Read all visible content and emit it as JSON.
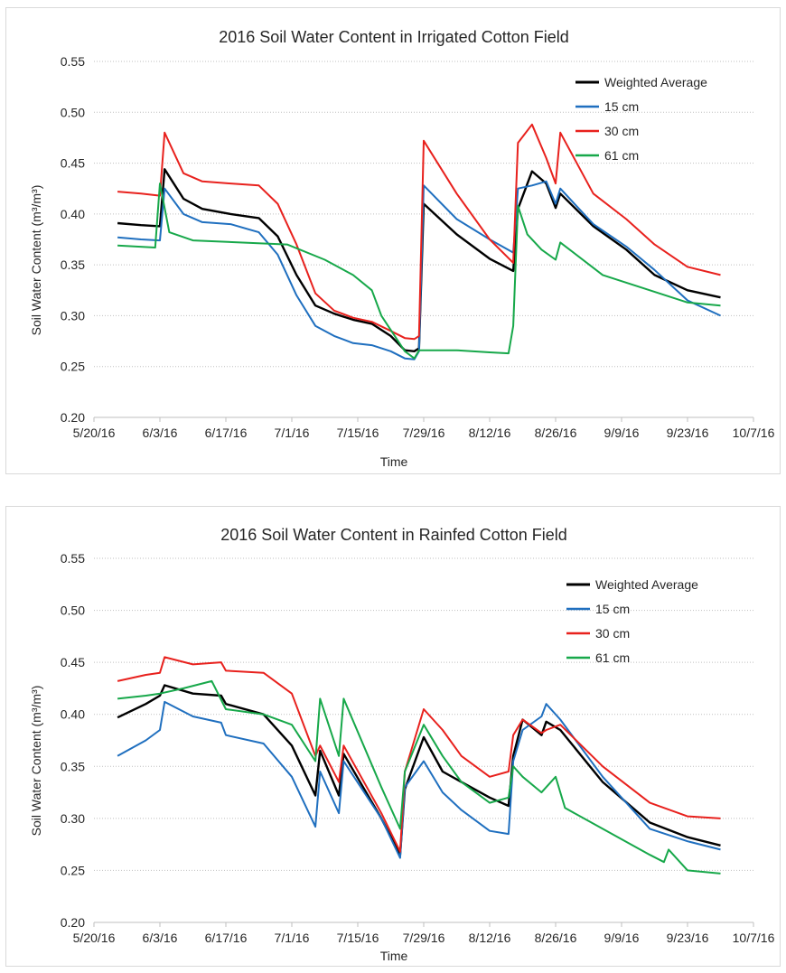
{
  "chart_data": [
    {
      "type": "line",
      "title": "2016 Soil Water Content in Irrigated Cotton Field",
      "xlabel": "Time",
      "ylabel": "Soil Water Content (m³/m³)",
      "ylim": [
        0.2,
        0.55
      ],
      "yticks": [
        "0.20",
        "0.25",
        "0.30",
        "0.35",
        "0.40",
        "0.45",
        "0.50",
        "0.55"
      ],
      "xticks": [
        "5/20/16",
        "6/3/16",
        "6/17/16",
        "7/1/16",
        "7/15/16",
        "7/29/16",
        "8/12/16",
        "8/26/16",
        "9/9/16",
        "9/23/16",
        "10/7/16"
      ],
      "xtick_values": [
        "2016-05-20",
        "2016-06-03",
        "2016-06-17",
        "2016-07-01",
        "2016-07-15",
        "2016-07-29",
        "2016-08-12",
        "2016-08-26",
        "2016-09-09",
        "2016-09-23",
        "2016-10-07"
      ],
      "grid": true,
      "legend_position": "top-right",
      "series": [
        {
          "name": "Weighted Average",
          "color": "#000000",
          "x": [
            "2016-05-25",
            "2016-05-30",
            "2016-06-03",
            "2016-06-04",
            "2016-06-08",
            "2016-06-12",
            "2016-06-18",
            "2016-06-24",
            "2016-06-28",
            "2016-07-02",
            "2016-07-06",
            "2016-07-10",
            "2016-07-14",
            "2016-07-18",
            "2016-07-22",
            "2016-07-25",
            "2016-07-27",
            "2016-07-28",
            "2016-07-29",
            "2016-08-05",
            "2016-08-12",
            "2016-08-17",
            "2016-08-18",
            "2016-08-21",
            "2016-08-24",
            "2016-08-26",
            "2016-08-27",
            "2016-09-03",
            "2016-09-10",
            "2016-09-16",
            "2016-09-23",
            "2016-09-30"
          ],
          "y": [
            0.391,
            0.389,
            0.388,
            0.444,
            0.415,
            0.405,
            0.4,
            0.396,
            0.378,
            0.34,
            0.31,
            0.302,
            0.296,
            0.292,
            0.28,
            0.266,
            0.265,
            0.268,
            0.41,
            0.38,
            0.356,
            0.344,
            0.405,
            0.442,
            0.43,
            0.406,
            0.42,
            0.388,
            0.365,
            0.34,
            0.325,
            0.318
          ]
        },
        {
          "name": "15 cm",
          "color": "#1F6FBF",
          "x": [
            "2016-05-25",
            "2016-05-30",
            "2016-06-03",
            "2016-06-04",
            "2016-06-08",
            "2016-06-12",
            "2016-06-18",
            "2016-06-24",
            "2016-06-28",
            "2016-07-02",
            "2016-07-06",
            "2016-07-10",
            "2016-07-14",
            "2016-07-18",
            "2016-07-22",
            "2016-07-25",
            "2016-07-27",
            "2016-07-28",
            "2016-07-29",
            "2016-08-05",
            "2016-08-12",
            "2016-08-17",
            "2016-08-18",
            "2016-08-21",
            "2016-08-24",
            "2016-08-26",
            "2016-08-27",
            "2016-09-03",
            "2016-09-10",
            "2016-09-16",
            "2016-09-23",
            "2016-09-30"
          ],
          "y": [
            0.377,
            0.375,
            0.374,
            0.425,
            0.4,
            0.392,
            0.39,
            0.382,
            0.36,
            0.32,
            0.29,
            0.28,
            0.273,
            0.271,
            0.265,
            0.258,
            0.257,
            0.265,
            0.428,
            0.395,
            0.375,
            0.362,
            0.425,
            0.428,
            0.432,
            0.41,
            0.425,
            0.39,
            0.368,
            0.345,
            0.315,
            0.3
          ]
        },
        {
          "name": "30 cm",
          "color": "#E8211D",
          "x": [
            "2016-05-25",
            "2016-05-30",
            "2016-06-03",
            "2016-06-04",
            "2016-06-08",
            "2016-06-12",
            "2016-06-18",
            "2016-06-24",
            "2016-06-28",
            "2016-07-02",
            "2016-07-06",
            "2016-07-10",
            "2016-07-14",
            "2016-07-18",
            "2016-07-22",
            "2016-07-25",
            "2016-07-27",
            "2016-07-28",
            "2016-07-29",
            "2016-08-05",
            "2016-08-12",
            "2016-08-17",
            "2016-08-18",
            "2016-08-21",
            "2016-08-24",
            "2016-08-26",
            "2016-08-27",
            "2016-09-03",
            "2016-09-10",
            "2016-09-16",
            "2016-09-23",
            "2016-09-30"
          ],
          "y": [
            0.422,
            0.42,
            0.418,
            0.48,
            0.44,
            0.432,
            0.43,
            0.428,
            0.41,
            0.37,
            0.322,
            0.305,
            0.298,
            0.294,
            0.285,
            0.278,
            0.277,
            0.28,
            0.472,
            0.42,
            0.375,
            0.352,
            0.47,
            0.488,
            0.455,
            0.43,
            0.48,
            0.42,
            0.395,
            0.37,
            0.348,
            0.34
          ]
        },
        {
          "name": "61 cm",
          "color": "#17A84A",
          "x": [
            "2016-05-25",
            "2016-06-02",
            "2016-06-03",
            "2016-06-05",
            "2016-06-10",
            "2016-06-20",
            "2016-06-30",
            "2016-07-08",
            "2016-07-14",
            "2016-07-18",
            "2016-07-20",
            "2016-07-25",
            "2016-07-27",
            "2016-07-28",
            "2016-08-05",
            "2016-08-12",
            "2016-08-16",
            "2016-08-17",
            "2016-08-18",
            "2016-08-20",
            "2016-08-23",
            "2016-08-26",
            "2016-08-27",
            "2016-09-05",
            "2016-09-15",
            "2016-09-23",
            "2016-09-30"
          ],
          "y": [
            0.369,
            0.367,
            0.43,
            0.382,
            0.374,
            0.372,
            0.37,
            0.355,
            0.34,
            0.325,
            0.3,
            0.265,
            0.258,
            0.266,
            0.266,
            0.264,
            0.263,
            0.29,
            0.408,
            0.38,
            0.365,
            0.355,
            0.372,
            0.34,
            0.325,
            0.313,
            0.31
          ]
        }
      ]
    },
    {
      "type": "line",
      "title": "2016 Soil Water Content in Rainfed Cotton Field",
      "xlabel": "Time",
      "ylabel": "Soil Water Content (m³/m³)",
      "ylim": [
        0.2,
        0.55
      ],
      "yticks": [
        "0.20",
        "0.25",
        "0.30",
        "0.35",
        "0.40",
        "0.45",
        "0.50",
        "0.55"
      ],
      "xticks": [
        "5/20/16",
        "6/3/16",
        "6/17/16",
        "7/1/16",
        "7/15/16",
        "7/29/16",
        "8/12/16",
        "8/26/16",
        "9/9/16",
        "9/23/16",
        "10/7/16"
      ],
      "xtick_values": [
        "2016-05-20",
        "2016-06-03",
        "2016-06-17",
        "2016-07-01",
        "2016-07-15",
        "2016-07-29",
        "2016-08-12",
        "2016-08-26",
        "2016-09-09",
        "2016-09-23",
        "2016-10-07"
      ],
      "grid": true,
      "legend_position": "top-right",
      "series": [
        {
          "name": "Weighted Average",
          "color": "#000000",
          "x": [
            "2016-05-25",
            "2016-05-31",
            "2016-06-03",
            "2016-06-04",
            "2016-06-10",
            "2016-06-16",
            "2016-06-17",
            "2016-06-25",
            "2016-07-01",
            "2016-07-06",
            "2016-07-07",
            "2016-07-11",
            "2016-07-12",
            "2016-07-20",
            "2016-07-24",
            "2016-07-25",
            "2016-07-29",
            "2016-08-02",
            "2016-08-06",
            "2016-08-12",
            "2016-08-16",
            "2016-08-17",
            "2016-08-19",
            "2016-08-23",
            "2016-08-24",
            "2016-08-27",
            "2016-09-05",
            "2016-09-15",
            "2016-09-23",
            "2016-09-30"
          ],
          "y": [
            0.397,
            0.41,
            0.418,
            0.428,
            0.42,
            0.418,
            0.41,
            0.4,
            0.37,
            0.322,
            0.365,
            0.322,
            0.362,
            0.3,
            0.265,
            0.328,
            0.378,
            0.345,
            0.335,
            0.32,
            0.312,
            0.36,
            0.395,
            0.38,
            0.393,
            0.385,
            0.335,
            0.296,
            0.282,
            0.274
          ]
        },
        {
          "name": "15 cm",
          "color": "#1F6FBF",
          "x": [
            "2016-05-25",
            "2016-05-31",
            "2016-06-03",
            "2016-06-04",
            "2016-06-10",
            "2016-06-16",
            "2016-06-17",
            "2016-06-25",
            "2016-07-01",
            "2016-07-06",
            "2016-07-07",
            "2016-07-11",
            "2016-07-12",
            "2016-07-20",
            "2016-07-24",
            "2016-07-25",
            "2016-07-29",
            "2016-08-02",
            "2016-08-06",
            "2016-08-12",
            "2016-08-16",
            "2016-08-17",
            "2016-08-19",
            "2016-08-23",
            "2016-08-24",
            "2016-08-27",
            "2016-09-05",
            "2016-09-15",
            "2016-09-23",
            "2016-09-30"
          ],
          "y": [
            0.36,
            0.375,
            0.385,
            0.412,
            0.398,
            0.392,
            0.38,
            0.372,
            0.34,
            0.292,
            0.345,
            0.305,
            0.355,
            0.3,
            0.262,
            0.33,
            0.355,
            0.325,
            0.308,
            0.288,
            0.285,
            0.355,
            0.385,
            0.398,
            0.41,
            0.395,
            0.34,
            0.29,
            0.278,
            0.27
          ]
        },
        {
          "name": "30 cm",
          "color": "#E8211D",
          "x": [
            "2016-05-25",
            "2016-05-31",
            "2016-06-03",
            "2016-06-04",
            "2016-06-10",
            "2016-06-16",
            "2016-06-17",
            "2016-06-25",
            "2016-07-01",
            "2016-07-06",
            "2016-07-07",
            "2016-07-11",
            "2016-07-12",
            "2016-07-20",
            "2016-07-24",
            "2016-07-25",
            "2016-07-29",
            "2016-08-02",
            "2016-08-06",
            "2016-08-12",
            "2016-08-16",
            "2016-08-17",
            "2016-08-19",
            "2016-08-23",
            "2016-08-24",
            "2016-08-27",
            "2016-09-05",
            "2016-09-15",
            "2016-09-23",
            "2016-09-30"
          ],
          "y": [
            0.432,
            0.438,
            0.44,
            0.455,
            0.448,
            0.45,
            0.442,
            0.44,
            0.42,
            0.36,
            0.37,
            0.335,
            0.37,
            0.305,
            0.268,
            0.345,
            0.405,
            0.385,
            0.36,
            0.34,
            0.345,
            0.38,
            0.395,
            0.382,
            0.385,
            0.39,
            0.35,
            0.315,
            0.302,
            0.3
          ]
        },
        {
          "name": "61 cm",
          "color": "#17A84A",
          "x": [
            "2016-05-25",
            "2016-05-31",
            "2016-06-03",
            "2016-06-08",
            "2016-06-14",
            "2016-06-17",
            "2016-06-25",
            "2016-07-01",
            "2016-07-06",
            "2016-07-07",
            "2016-07-11",
            "2016-07-12",
            "2016-07-20",
            "2016-07-24",
            "2016-07-25",
            "2016-07-29",
            "2016-08-02",
            "2016-08-06",
            "2016-08-12",
            "2016-08-16",
            "2016-08-17",
            "2016-08-19",
            "2016-08-23",
            "2016-08-26",
            "2016-08-28",
            "2016-09-05",
            "2016-09-15",
            "2016-09-18",
            "2016-09-19",
            "2016-09-23",
            "2016-09-30"
          ],
          "y": [
            0.415,
            0.418,
            0.42,
            0.425,
            0.432,
            0.405,
            0.4,
            0.39,
            0.355,
            0.415,
            0.36,
            0.415,
            0.33,
            0.29,
            0.345,
            0.39,
            0.36,
            0.335,
            0.315,
            0.32,
            0.35,
            0.34,
            0.325,
            0.34,
            0.31,
            0.29,
            0.265,
            0.258,
            0.27,
            0.25,
            0.247
          ]
        }
      ]
    }
  ]
}
